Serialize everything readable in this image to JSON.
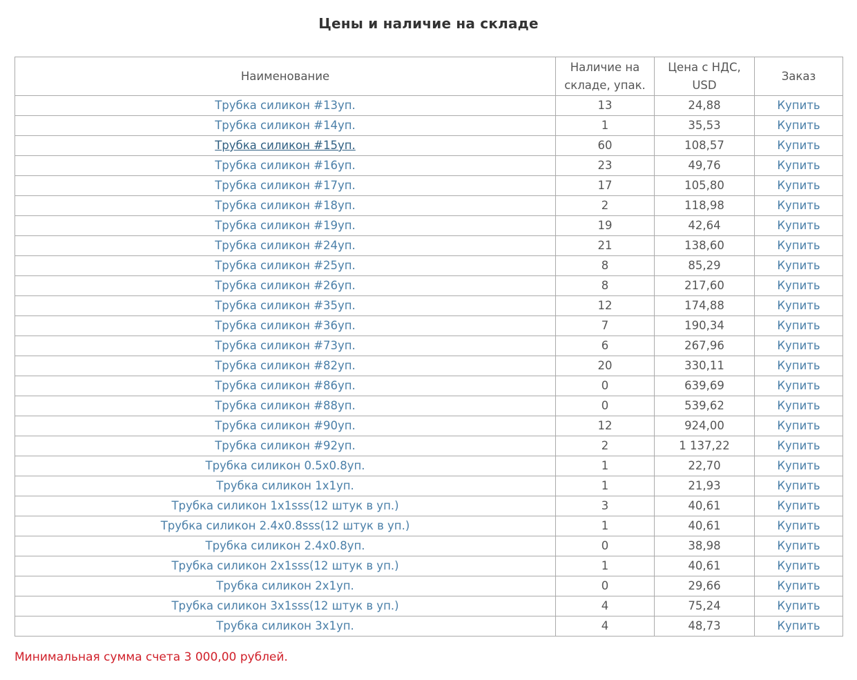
{
  "title": "Цены и наличие на складе",
  "table": {
    "headers": {
      "name": "Наименование",
      "stock": "Наличие на складе, упак.",
      "price": "Цена с НДС, USD",
      "order": "Заказ"
    },
    "buy_label": "Купить",
    "rows": [
      {
        "name": "Трубка силикон #13уп.",
        "stock": "13",
        "price": "24,88"
      },
      {
        "name": "Трубка силикон #14уп.",
        "stock": "1",
        "price": "35,53"
      },
      {
        "name": "Трубка силикон #15уп.",
        "stock": "60",
        "price": "108,57",
        "hovered": true
      },
      {
        "name": "Трубка силикон #16уп.",
        "stock": "23",
        "price": "49,76"
      },
      {
        "name": "Трубка силикон #17уп.",
        "stock": "17",
        "price": "105,80"
      },
      {
        "name": "Трубка силикон #18уп.",
        "stock": "2",
        "price": "118,98"
      },
      {
        "name": "Трубка силикон #19уп.",
        "stock": "19",
        "price": "42,64"
      },
      {
        "name": "Трубка силикон #24уп.",
        "stock": "21",
        "price": "138,60"
      },
      {
        "name": "Трубка силикон #25уп.",
        "stock": "8",
        "price": "85,29"
      },
      {
        "name": "Трубка силикон #26уп.",
        "stock": "8",
        "price": "217,60"
      },
      {
        "name": "Трубка силикон #35уп.",
        "stock": "12",
        "price": "174,88"
      },
      {
        "name": "Трубка силикон #36уп.",
        "stock": "7",
        "price": "190,34"
      },
      {
        "name": "Трубка силикон #73уп.",
        "stock": "6",
        "price": "267,96"
      },
      {
        "name": "Трубка силикон #82уп.",
        "stock": "20",
        "price": "330,11"
      },
      {
        "name": "Трубка силикон #86уп.",
        "stock": "0",
        "price": "639,69"
      },
      {
        "name": "Трубка силикон #88уп.",
        "stock": "0",
        "price": "539,62"
      },
      {
        "name": "Трубка силикон #90уп.",
        "stock": "12",
        "price": "924,00"
      },
      {
        "name": "Трубка силикон #92уп.",
        "stock": "2",
        "price": "1 137,22"
      },
      {
        "name": "Трубка силикон 0.5x0.8уп.",
        "stock": "1",
        "price": "22,70"
      },
      {
        "name": "Трубка силикон 1x1уп.",
        "stock": "1",
        "price": "21,93"
      },
      {
        "name": "Трубка силикон 1x1sss(12 штук в уп.)",
        "stock": "3",
        "price": "40,61"
      },
      {
        "name": "Трубка силикон 2.4x0.8sss(12 штук в уп.)",
        "stock": "1",
        "price": "40,61"
      },
      {
        "name": "Трубка силикон 2.4x0.8уп.",
        "stock": "0",
        "price": "38,98"
      },
      {
        "name": "Трубка силикон 2x1sss(12 штук в уп.)",
        "stock": "1",
        "price": "40,61"
      },
      {
        "name": "Трубка силикон 2x1уп.",
        "stock": "0",
        "price": "29,66"
      },
      {
        "name": "Трубка силикон 3x1sss(12 штук в уп.)",
        "stock": "4",
        "price": "75,24"
      },
      {
        "name": "Трубка силикон 3x1уп.",
        "stock": "4",
        "price": "48,73"
      }
    ]
  },
  "note": "Минимальная сумма счета 3 000,00 рублей.",
  "colors": {
    "link": "#4a7fa8",
    "note": "#d0202a",
    "border": "#aaaaaa"
  }
}
